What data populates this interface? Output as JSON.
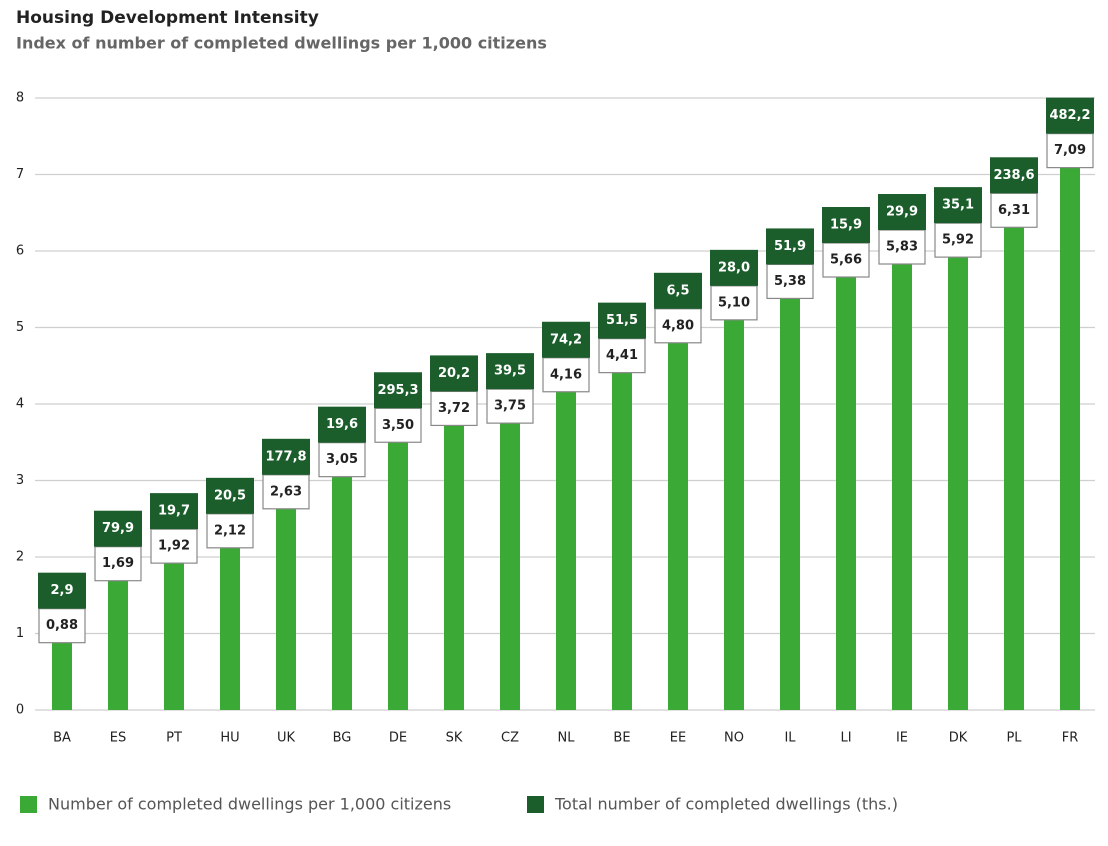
{
  "chart_data": {
    "type": "bar",
    "title": "Housing Development Intensity",
    "subtitle": "Index of number of completed dwellings per 1,000 citizens",
    "categories": [
      "BA",
      "ES",
      "PT",
      "HU",
      "UK",
      "BG",
      "DE",
      "SK",
      "CZ",
      "NL",
      "BE",
      "EE",
      "NO",
      "IL",
      "LI",
      "IE",
      "DK",
      "PL",
      "FR"
    ],
    "series": [
      {
        "name": "Number of completed dwellings per 1,000 citizens",
        "color": "#3aa935",
        "values": [
          0.88,
          1.69,
          1.92,
          2.12,
          2.63,
          3.05,
          3.5,
          3.72,
          3.75,
          4.16,
          4.41,
          4.8,
          5.1,
          5.38,
          5.66,
          5.83,
          5.92,
          6.31,
          7.09
        ],
        "value_labels": [
          "0,88",
          "1,69",
          "1,92",
          "2,12",
          "2,63",
          "3,05",
          "3,50",
          "3,72",
          "3,75",
          "4,16",
          "4,41",
          "4,80",
          "5,10",
          "5,38",
          "5,66",
          "5,83",
          "5,92",
          "6,31",
          "7,09"
        ]
      },
      {
        "name": "Total number of completed dwellings (ths.)",
        "color": "#1b5e2b",
        "values": [
          2.9,
          79.9,
          19.7,
          20.5,
          177.8,
          19.6,
          295.3,
          20.2,
          39.5,
          74.2,
          51.5,
          6.5,
          28.0,
          51.9,
          15.9,
          29.9,
          35.1,
          238.6,
          482.2
        ],
        "value_labels": [
          "2,9",
          "79,9",
          "19,7",
          "20,5",
          "177,8",
          "19,6",
          "295,3",
          "20,2",
          "39,5",
          "74,2",
          "51,5",
          "6,5",
          "28,0",
          "51,9",
          "15,9",
          "29,9",
          "35,1",
          "238,6",
          "482,2"
        ]
      }
    ],
    "ylim": [
      0,
      8
    ],
    "yticks": [
      0,
      1,
      2,
      3,
      4,
      5,
      6,
      7,
      8
    ],
    "grid": true
  }
}
